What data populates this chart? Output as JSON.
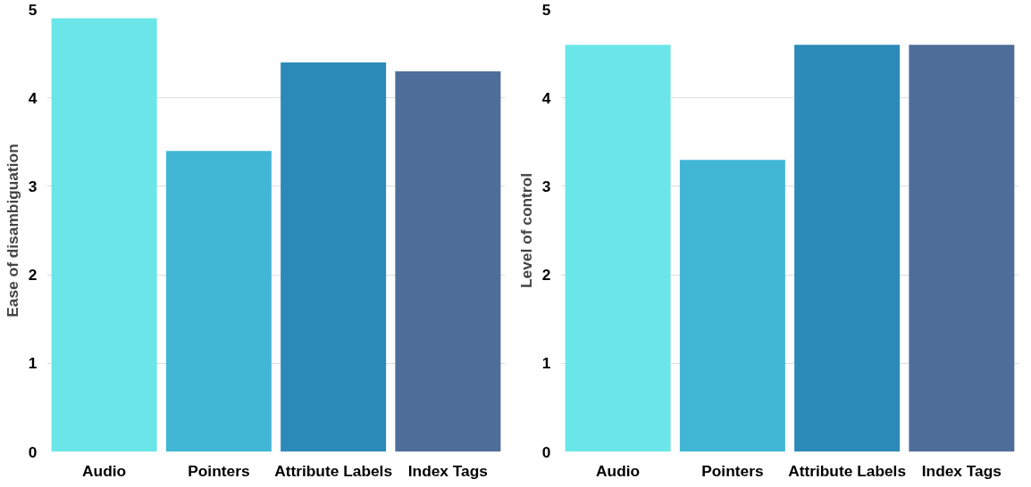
{
  "chart_data": [
    {
      "type": "bar",
      "ylabel": "Ease of disambiguation",
      "categories": [
        "Audio",
        "Pointers",
        "Attribute Labels",
        "Index Tags"
      ],
      "values": [
        4.9,
        3.4,
        4.4,
        4.3
      ],
      "colors": [
        "#6ae6e9",
        "#42b6d5",
        "#2b8ab8",
        "#4e6d99"
      ],
      "ylim": [
        0,
        5
      ],
      "yticks": [
        0,
        1,
        2,
        3,
        4,
        5
      ],
      "grid": "y"
    },
    {
      "type": "bar",
      "ylabel": "Level of control",
      "categories": [
        "Audio",
        "Pointers",
        "Attribute Labels",
        "Index Tags"
      ],
      "values": [
        4.6,
        3.3,
        4.6,
        4.6
      ],
      "colors": [
        "#6ae6e9",
        "#42b6d5",
        "#2b8ab8",
        "#4e6d99"
      ],
      "ylim": [
        0,
        5
      ],
      "yticks": [
        0,
        1,
        2,
        3,
        4,
        5
      ],
      "grid": "y"
    }
  ]
}
